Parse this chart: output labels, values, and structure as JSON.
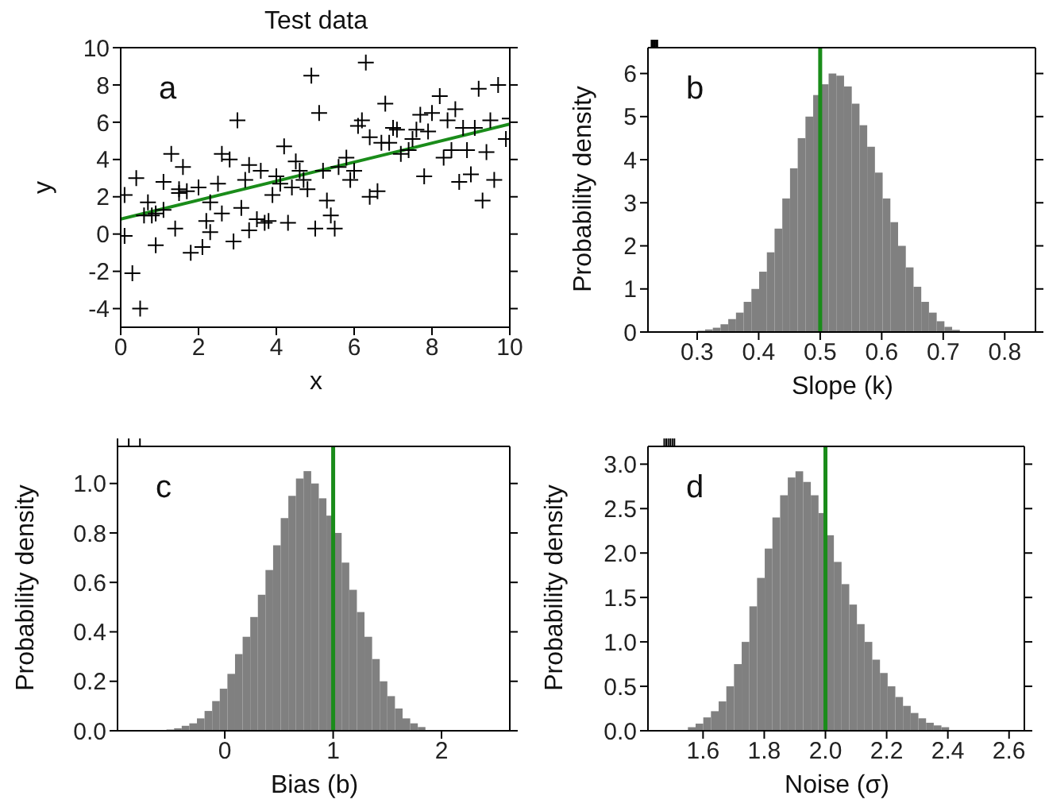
{
  "chart_data": [
    {
      "type": "scatter",
      "title": "Test data",
      "xlabel": "x",
      "ylabel": "y",
      "annotations": [
        "a"
      ],
      "xlim": [
        0,
        10
      ],
      "ylim": [
        -5,
        10
      ],
      "xticks": [
        0,
        2,
        4,
        6,
        8,
        10
      ],
      "yticks": [
        -4,
        -2,
        0,
        2,
        4,
        6,
        8,
        10
      ],
      "series": [
        {
          "color": "#000000",
          "marker": "cross",
          "x": [
            0.1,
            0.1,
            0.3,
            0.5,
            0.4,
            0.7,
            0.6,
            0.8,
            0.9,
            1.1,
            0.9,
            1.1,
            1.3,
            1.4,
            1.5,
            1.6,
            1.7,
            1.5,
            1.8,
            2.0,
            2.1,
            2.2,
            2.3,
            2.3,
            2.5,
            2.6,
            2.6,
            2.8,
            2.9,
            3.0,
            3.1,
            3.2,
            3.3,
            3.3,
            3.5,
            3.6,
            3.7,
            3.8,
            3.9,
            4.0,
            4.1,
            4.2,
            4.3,
            4.4,
            4.5,
            4.6,
            4.7,
            4.8,
            4.9,
            5.0,
            5.1,
            5.2,
            5.3,
            5.4,
            5.5,
            5.6,
            5.8,
            5.9,
            6.0,
            6.1,
            6.2,
            6.3,
            6.4,
            6.4,
            6.6,
            6.7,
            6.8,
            6.9,
            7.0,
            7.1,
            7.2,
            7.4,
            7.5,
            7.6,
            7.7,
            7.8,
            7.9,
            8.0,
            8.2,
            8.3,
            8.4,
            8.5,
            8.6,
            8.7,
            8.8,
            8.9,
            9.0,
            9.1,
            9.2,
            9.3,
            9.4,
            9.5,
            9.6,
            9.7,
            9.9,
            10.0
          ],
          "values": [
            2.1,
            -0.1,
            -2.1,
            -4.0,
            3.0,
            1.7,
            1.0,
            1.0,
            -0.6,
            2.8,
            1.1,
            1.3,
            4.3,
            0.3,
            2.2,
            3.6,
            2.3,
            2.4,
            -1.0,
            2.5,
            -0.7,
            0.7,
            0.1,
            1.7,
            2.7,
            1.1,
            4.3,
            4.0,
            -0.4,
            6.1,
            1.4,
            2.9,
            3.7,
            0.2,
            0.8,
            3.4,
            0.6,
            0.7,
            2.1,
            3.1,
            2.7,
            4.7,
            0.6,
            2.5,
            3.9,
            3.4,
            2.9,
            2.4,
            8.5,
            0.3,
            6.5,
            3.4,
            1.8,
            1.0,
            0.3,
            3.6,
            4.1,
            2.9,
            3.4,
            5.8,
            6.1,
            9.2,
            5.2,
            2.0,
            2.3,
            4.9,
            7.0,
            4.9,
            5.7,
            5.6,
            4.3,
            4.5,
            5.1,
            5.6,
            6.4,
            3.1,
            5.5,
            6.5,
            7.4,
            4.1,
            6.1,
            4.5,
            6.7,
            2.8,
            5.7,
            4.5,
            3.2,
            5.7,
            7.8,
            1.8,
            4.4,
            6.1,
            2.9,
            8.0,
            5.1,
            6.2
          ]
        },
        {
          "type": "line",
          "color": "#1a8c1a",
          "x": [
            0,
            10
          ],
          "values": [
            0.8,
            5.9
          ]
        }
      ]
    },
    {
      "type": "histogram",
      "xlabel": "Slope (k)",
      "ylabel": "Probability density",
      "annotations": [
        "b"
      ],
      "color": "#808080",
      "xlim": [
        0.22,
        0.85
      ],
      "ylim": [
        0,
        6.6
      ],
      "xticks": [
        0.3,
        0.4,
        0.5,
        0.6,
        0.7,
        0.8
      ],
      "yticks": [
        0,
        1,
        2,
        3,
        4,
        5,
        6
      ],
      "bins": [
        0.3,
        0.3125,
        0.325,
        0.3375,
        0.35,
        0.3625,
        0.375,
        0.3875,
        0.4,
        0.4125,
        0.425,
        0.4375,
        0.45,
        0.4625,
        0.475,
        0.4875,
        0.5,
        0.5125,
        0.525,
        0.5375,
        0.55,
        0.5625,
        0.575,
        0.5875,
        0.6,
        0.6125,
        0.625,
        0.6375,
        0.65,
        0.6625,
        0.675,
        0.6875,
        0.7,
        0.7125,
        0.725
      ],
      "values": [
        0.03,
        0.06,
        0.1,
        0.18,
        0.3,
        0.45,
        0.7,
        1.0,
        1.4,
        1.85,
        2.4,
        3.1,
        3.8,
        4.5,
        5.0,
        5.5,
        5.75,
        6.0,
        5.95,
        5.7,
        5.3,
        4.8,
        4.3,
        3.7,
        3.1,
        2.55,
        2.0,
        1.5,
        1.05,
        0.7,
        0.45,
        0.25,
        0.12,
        0.05
      ],
      "ref_lines": [
        {
          "axis": "x",
          "value": 0.5,
          "color": "#1a8c1a"
        }
      ]
    },
    {
      "type": "histogram",
      "xlabel": "Bias (b)",
      "ylabel": "Probability density",
      "annotations": [
        "c"
      ],
      "color": "#808080",
      "xlim": [
        -0.99,
        2.63
      ],
      "ylim": [
        0,
        1.15
      ],
      "xticks": [
        0,
        1,
        2
      ],
      "yticks": [
        {
          "value": 0,
          "label": "0.0"
        },
        0.2,
        0.4,
        0.6,
        0.8,
        {
          "value": 1,
          "label": "1.0"
        }
      ],
      "bins": [
        -0.54,
        -0.47,
        -0.4,
        -0.33,
        -0.26,
        -0.19,
        -0.12,
        -0.05,
        0.02,
        0.09,
        0.16,
        0.23,
        0.3,
        0.37,
        0.44,
        0.51,
        0.58,
        0.65,
        0.72,
        0.79,
        0.86,
        0.93,
        1.0,
        1.07,
        1.14,
        1.21,
        1.28,
        1.35,
        1.42,
        1.49,
        1.56,
        1.63,
        1.7,
        1.77,
        1.84,
        1.91,
        1.98
      ],
      "values": [
        0.005,
        0.01,
        0.02,
        0.03,
        0.05,
        0.08,
        0.12,
        0.17,
        0.23,
        0.31,
        0.38,
        0.46,
        0.55,
        0.65,
        0.75,
        0.86,
        0.95,
        1.02,
        1.05,
        1.0,
        0.94,
        0.87,
        0.8,
        0.68,
        0.57,
        0.48,
        0.38,
        0.29,
        0.2,
        0.14,
        0.09,
        0.05,
        0.03,
        0.015,
        null,
        null
      ],
      "ref_lines": [
        {
          "axis": "x",
          "value": 1,
          "color": "#1a8c1a"
        }
      ]
    },
    {
      "type": "histogram",
      "xlabel": "Noise (σ)",
      "ylabel": "Probability density",
      "annotations": [
        "d"
      ],
      "color": "#808080",
      "xlim": [
        1.42,
        2.65
      ],
      "ylim": [
        0,
        3.2
      ],
      "xticks": [
        1.6,
        1.8,
        {
          "value": 2,
          "label": "2.0"
        },
        2.2,
        2.4,
        2.6
      ],
      "yticks": [
        {
          "value": 0,
          "label": "0.0"
        },
        0.5,
        {
          "value": 1,
          "label": "1.0"
        },
        1.5,
        {
          "value": 2,
          "label": "2.0"
        },
        2.5,
        {
          "value": 3,
          "label": "3.0"
        }
      ],
      "bins": [
        1.5,
        1.525,
        1.55,
        1.575,
        1.6,
        1.625,
        1.65,
        1.675,
        1.7,
        1.725,
        1.75,
        1.775,
        1.8,
        1.825,
        1.85,
        1.875,
        1.9,
        1.925,
        1.95,
        1.975,
        2.0,
        2.025,
        2.05,
        2.075,
        2.1,
        2.125,
        2.15,
        2.175,
        2.2,
        2.225,
        2.25,
        2.275,
        2.3,
        2.325,
        2.35,
        2.375,
        2.4,
        2.425,
        2.45
      ],
      "values": [
        null,
        null,
        0.04,
        0.08,
        0.15,
        0.22,
        0.33,
        0.5,
        0.75,
        1.0,
        1.4,
        1.72,
        2.05,
        2.4,
        2.65,
        2.85,
        2.92,
        2.8,
        2.65,
        2.45,
        2.2,
        1.9,
        1.65,
        1.42,
        1.2,
        1.0,
        0.8,
        0.65,
        0.5,
        0.38,
        0.28,
        0.2,
        0.14,
        0.09,
        0.06,
        0.04,
        null,
        null
      ],
      "ref_lines": [
        {
          "axis": "x",
          "value": 2,
          "color": "#1a8c1a"
        }
      ]
    }
  ]
}
